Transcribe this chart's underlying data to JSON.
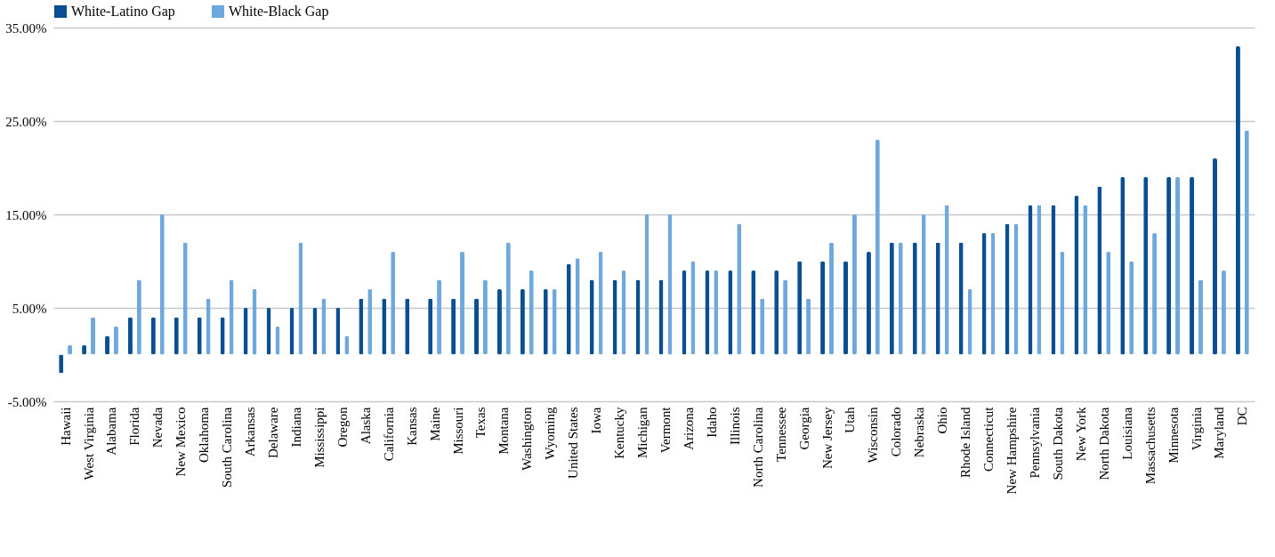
{
  "chart_data": {
    "type": "bar",
    "categories": [
      "Hawaii",
      "West Virginia",
      "Alabama",
      "Florida",
      "Nevada",
      "New Mexico",
      "Oklahoma",
      "South Carolina",
      "Arkansas",
      "Delaware",
      "Indiana",
      "Mississippi",
      "Oregon",
      "Alaska",
      "California",
      "Kansas",
      "Maine",
      "Missouri",
      "Texas",
      "Montana",
      "Washington",
      "Wyoming",
      "United States",
      "Iowa",
      "Kentucky",
      "Michigan",
      "Vermont",
      "Arizona",
      "Idaho",
      "Illinois",
      "North Carolina",
      "Tennessee",
      "Georgia",
      "New Jersey",
      "Utah",
      "Wisconsin",
      "Colorado",
      "Nebraska",
      "Ohio",
      "Rhode Island",
      "Connecticut",
      "New Hampshire",
      "Pennsylvania",
      "South Dakota",
      "New York",
      "North Dakota",
      "Louisiana",
      "Massachusetts",
      "Minnesota",
      "Virginia",
      "Maryland",
      "DC"
    ],
    "series": [
      {
        "name": "White-Latino Gap",
        "color": "#0b4f93",
        "values": [
          -2,
          1,
          2,
          4,
          4,
          4,
          4,
          4,
          5,
          5,
          5,
          5,
          5,
          6,
          6,
          6,
          6,
          6,
          6,
          7,
          7,
          7,
          9.7,
          8,
          8,
          8,
          8,
          9,
          9,
          9,
          9,
          9,
          10,
          10,
          10,
          11,
          12,
          12,
          12,
          12,
          13,
          14,
          16,
          16,
          17,
          18,
          19,
          19,
          19,
          19,
          21,
          33
        ]
      },
      {
        "name": "White-Black Gap",
        "color": "#6fa8dc",
        "values": [
          1,
          4,
          3,
          8,
          15,
          12,
          6,
          8,
          7,
          3,
          12,
          6,
          2,
          7,
          11,
          null,
          8,
          11,
          8,
          12,
          9,
          7,
          10.3,
          11,
          9,
          15,
          15,
          10,
          9,
          14,
          6,
          8,
          6,
          12,
          15,
          23,
          12,
          15,
          16,
          7,
          13,
          14,
          16,
          11,
          16,
          11,
          10,
          13,
          19,
          8,
          9,
          24
        ]
      }
    ],
    "ylim": [
      -5,
      35
    ],
    "yticks": [
      {
        "value": -5,
        "label": "-5.00%"
      },
      {
        "value": 5,
        "label": "5.00%"
      },
      {
        "value": 15,
        "label": "15.00%"
      },
      {
        "value": 25,
        "label": "25.00%"
      },
      {
        "value": 35,
        "label": "35.00%"
      }
    ],
    "grid": "y",
    "legend": "top"
  }
}
